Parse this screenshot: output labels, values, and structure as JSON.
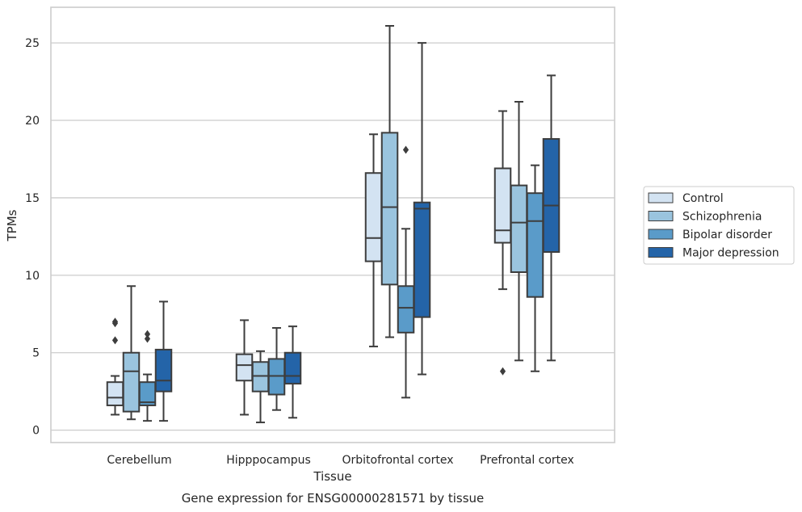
{
  "chart_data": {
    "type": "box",
    "xlabel": "Tissue",
    "ylabel": "TPMs",
    "caption": "Gene expression for ENSG00000281571 by tissue",
    "ylim": [
      -0.8,
      27.3
    ],
    "yticks": [
      0,
      5,
      10,
      15,
      20,
      25
    ],
    "grid": true,
    "legend_position": "right",
    "categories": [
      "Cerebellum",
      "Hipppocampus",
      "Orbitofrontal cortex",
      "Prefrontal cortex"
    ],
    "series": [
      {
        "name": "Control",
        "color": "#d3e3f2",
        "boxes": [
          {
            "whislo": 1.0,
            "q1": 1.6,
            "med": 2.1,
            "q3": 3.1,
            "whishi": 3.5,
            "fliers": [
              5.8,
              6.9,
              7.0
            ]
          },
          {
            "whislo": 1.0,
            "q1": 3.2,
            "med": 4.2,
            "q3": 4.9,
            "whishi": 7.1,
            "fliers": []
          },
          {
            "whislo": 5.4,
            "q1": 10.9,
            "med": 12.4,
            "q3": 16.6,
            "whishi": 19.1,
            "fliers": []
          },
          {
            "whislo": 9.1,
            "q1": 12.1,
            "med": 12.9,
            "q3": 16.9,
            "whishi": 20.6,
            "fliers": [
              3.8
            ]
          }
        ]
      },
      {
        "name": "Schizophrenia",
        "color": "#9ac4de",
        "boxes": [
          {
            "whislo": 0.7,
            "q1": 1.2,
            "med": 3.8,
            "q3": 5.0,
            "whishi": 9.3,
            "fliers": []
          },
          {
            "whislo": 0.5,
            "q1": 2.5,
            "med": 3.5,
            "q3": 4.4,
            "whishi": 5.1,
            "fliers": []
          },
          {
            "whislo": 6.0,
            "q1": 9.4,
            "med": 14.4,
            "q3": 19.2,
            "whishi": 26.1,
            "fliers": []
          },
          {
            "whislo": 4.5,
            "q1": 10.2,
            "med": 13.4,
            "q3": 15.8,
            "whishi": 21.2,
            "fliers": []
          }
        ]
      },
      {
        "name": "Bipolar disorder",
        "color": "#5a9bc9",
        "boxes": [
          {
            "whislo": 0.6,
            "q1": 1.6,
            "med": 1.8,
            "q3": 3.1,
            "whishi": 3.6,
            "fliers": [
              5.9,
              6.2
            ]
          },
          {
            "whislo": 1.3,
            "q1": 2.3,
            "med": 3.5,
            "q3": 4.6,
            "whishi": 6.6,
            "fliers": []
          },
          {
            "whislo": 2.1,
            "q1": 6.3,
            "med": 7.9,
            "q3": 9.3,
            "whishi": 13.0,
            "fliers": [
              18.1
            ]
          },
          {
            "whislo": 3.8,
            "q1": 8.6,
            "med": 13.5,
            "q3": 15.3,
            "whishi": 17.1,
            "fliers": []
          }
        ]
      },
      {
        "name": "Major depression",
        "color": "#2464a8",
        "boxes": [
          {
            "whislo": 0.6,
            "q1": 2.5,
            "med": 3.2,
            "q3": 5.2,
            "whishi": 8.3,
            "fliers": []
          },
          {
            "whislo": 0.8,
            "q1": 3.0,
            "med": 3.5,
            "q3": 5.0,
            "whishi": 6.7,
            "fliers": []
          },
          {
            "whislo": 3.6,
            "q1": 7.3,
            "med": 14.3,
            "q3": 14.7,
            "whishi": 25.0,
            "fliers": []
          },
          {
            "whislo": 4.5,
            "q1": 11.5,
            "med": 14.5,
            "q3": 18.8,
            "whishi": 22.9,
            "fliers": []
          }
        ]
      }
    ]
  }
}
